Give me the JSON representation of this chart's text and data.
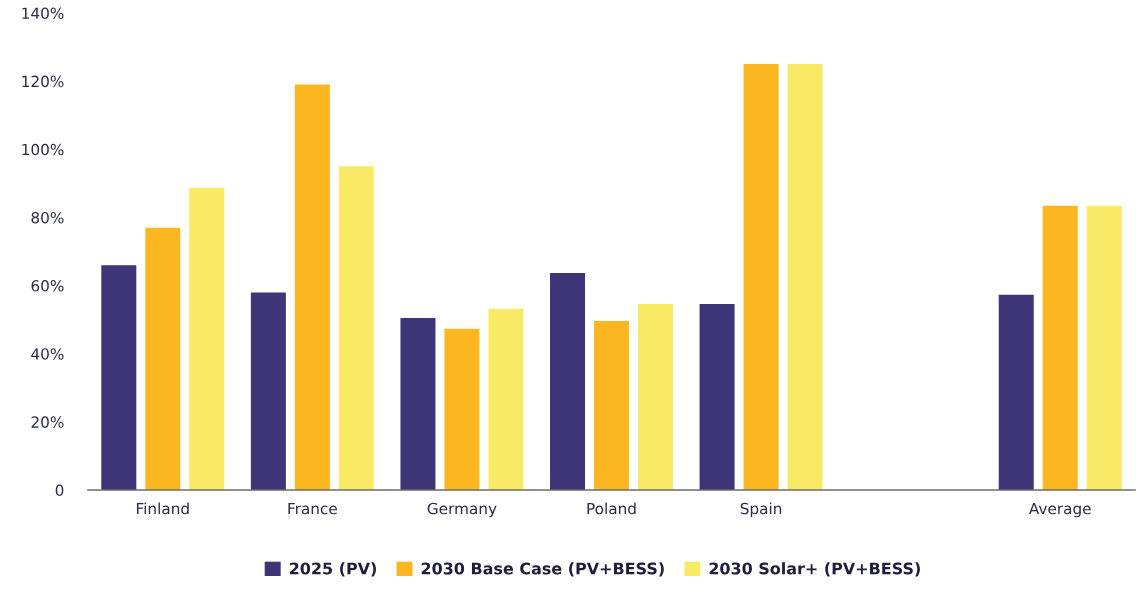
{
  "chart_data": {
    "type": "bar",
    "categories": [
      "Finland",
      "France",
      "Germany",
      "Poland",
      "Spain",
      null,
      "Average"
    ],
    "series": [
      {
        "name": "2025 (PV)",
        "color": "#3d3577",
        "values": [
          66,
          58,
          50.5,
          63.7,
          54.6,
          null,
          57.3
        ]
      },
      {
        "name": "2030 Base Case (PV+BESS)",
        "color": "#fbb620",
        "values": [
          77,
          119,
          47.3,
          49.6,
          125,
          null,
          83.4
        ]
      },
      {
        "name": "2030 Solar+ (PV+BESS)",
        "color": "#f9ea66",
        "values": [
          88.7,
          95,
          53.2,
          54.6,
          125,
          null,
          83.4
        ]
      }
    ],
    "ylim": [
      0,
      140
    ],
    "yticks": [
      0,
      {
        "value": 20,
        "label": "20%"
      },
      {
        "value": 40,
        "label": "40%"
      },
      {
        "value": 60,
        "label": "60%"
      },
      {
        "value": 80,
        "label": "80%"
      },
      {
        "value": 100,
        "label": "100%"
      },
      {
        "value": 120,
        "label": "120%"
      },
      {
        "value": 140,
        "label": "140%"
      }
    ],
    "grid": false,
    "legend": "bottom"
  }
}
